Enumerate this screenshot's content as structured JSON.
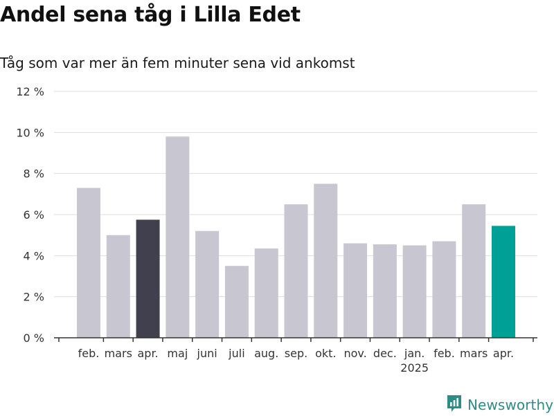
{
  "title": "Andel sena tåg i Lilla Edet",
  "subtitle": "Tåg som var mer än fem minuter sena vid ankomst",
  "brand": {
    "name": "Newsworthy",
    "icon": "newsworthy-logo-icon"
  },
  "colors": {
    "default_bar": "#c8c7d1",
    "previous_year_bar": "#41404f",
    "current_bar": "#00a096",
    "grid": "#dddddd",
    "axis": "#333333",
    "brand": "#2e8b85"
  },
  "chart_data": {
    "type": "bar",
    "title": "Andel sena tåg i Lilla Edet",
    "subtitle": "Tåg som var mer än fem minuter sena vid ankomst",
    "categories": [
      "feb.",
      "mars",
      "apr.",
      "maj",
      "juni",
      "juli",
      "aug.",
      "sep.",
      "okt.",
      "nov.",
      "dec.",
      "jan.",
      "feb.",
      "mars",
      "apr."
    ],
    "year_label": "2025",
    "year_label_under": "jan.",
    "values": [
      7.3,
      5.0,
      5.75,
      9.8,
      5.2,
      3.5,
      4.35,
      6.5,
      7.5,
      4.6,
      4.55,
      4.5,
      4.7,
      6.5,
      5.45
    ],
    "highlight": {
      "2": "previous_year_bar",
      "14": "current_bar"
    },
    "y_ticks": [
      "0 %",
      "2 %",
      "4 %",
      "6 %",
      "8 %",
      "10 %",
      "12 %"
    ],
    "ylim": [
      0,
      12
    ],
    "unit": "%",
    "grid": true,
    "legend": "none"
  }
}
